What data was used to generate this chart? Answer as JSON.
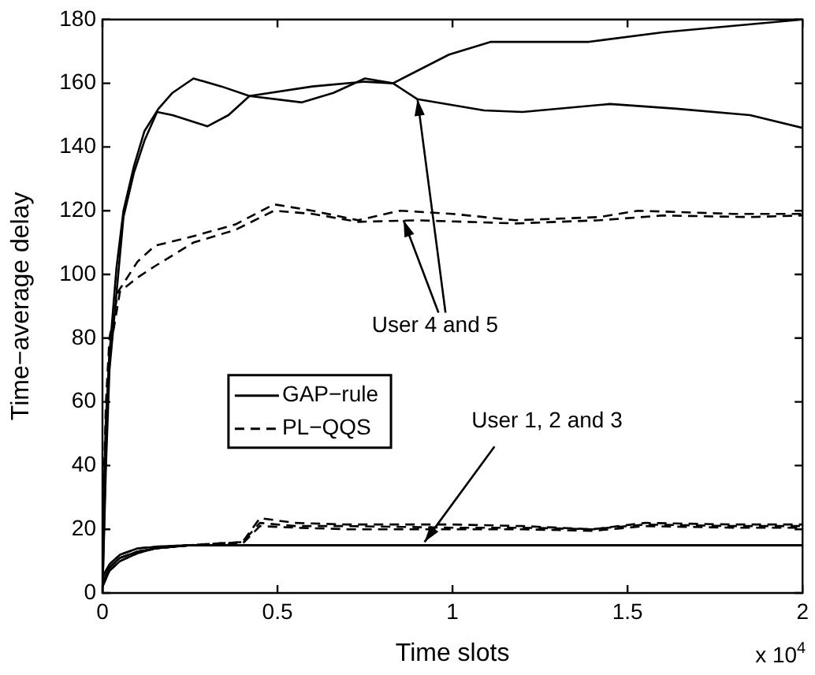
{
  "chart_data": {
    "type": "line",
    "xlabel": "Time slots",
    "ylabel": "Time−average delay",
    "xlim": [
      0,
      2
    ],
    "xticks": [
      0,
      0.5,
      1,
      1.5,
      2
    ],
    "ylim": [
      0,
      180
    ],
    "yticks": [
      0,
      20,
      40,
      60,
      80,
      100,
      120,
      140,
      160,
      180
    ],
    "grid": false,
    "legend": "center left",
    "marker": "none",
    "annotations": [
      {
        "text": "User 4 and 5",
        "x": 0.9,
        "y": 155
      },
      {
        "text": "User 1, 2 and 3",
        "x": 0.92,
        "y": 16
      },
      "x 10$^{4}$"
    ],
    "series": [
      {
        "name": "GAP−rule",
        "color": "#000000",
        "line_style": "solid",
        "x": [
          0,
          0.01,
          0.02,
          0.045,
          0.06,
          0.09,
          0.12,
          0.156,
          0.2,
          0.3,
          0.36,
          0.42,
          0.6,
          0.75,
          0.83,
          0.99,
          1.11,
          1.39,
          1.6,
          2
        ],
        "values": [
          0,
          40,
          70,
          100,
          118,
          132,
          142,
          151,
          150,
          146.5,
          150,
          156,
          159,
          160.5,
          160,
          169,
          173,
          173,
          176,
          180
        ]
      },
      {
        "color": "#000000",
        "line_style": "solid",
        "x": [
          0,
          0.01,
          0.02,
          0.04,
          0.06,
          0.09,
          0.12,
          0.16,
          0.2,
          0.26,
          0.34,
          0.42,
          0.57,
          0.66,
          0.75,
          0.83,
          0.9,
          1.09,
          1.2,
          1.45,
          1.64,
          1.85,
          2
        ],
        "values": [
          0,
          45,
          75,
          102,
          120,
          134,
          145,
          152,
          157,
          161.5,
          159,
          156,
          154,
          157,
          161.5,
          160,
          155,
          151.5,
          151,
          153.5,
          152,
          150,
          146
        ]
      },
      {
        "name": "PL−QQS",
        "color": "#000000",
        "line_style": "dashed",
        "x": [
          0,
          0.01,
          0.02,
          0.045,
          0.1,
          0.15,
          0.26,
          0.38,
          0.49,
          0.6,
          0.73,
          0.85,
          1.0,
          1.18,
          1.42,
          1.53,
          1.8,
          2
        ],
        "values": [
          20,
          60,
          80,
          94.6,
          104,
          109,
          112,
          115.7,
          122,
          120,
          117,
          120,
          119,
          117,
          118,
          120,
          119,
          119
        ]
      },
      {
        "color": "#000000",
        "line_style": "dashed",
        "x": [
          0,
          0.01,
          0.02,
          0.05,
          0.1,
          0.15,
          0.26,
          0.38,
          0.49,
          0.6,
          0.73,
          0.9,
          1.18,
          1.42,
          1.6,
          1.85,
          2
        ],
        "values": [
          18,
          55,
          75,
          94.6,
          99,
          102.6,
          110,
          114,
          120,
          119,
          116.5,
          117,
          116,
          117,
          118.5,
          118,
          118.5
        ]
      },
      {
        "color": "#000000",
        "line_style": "solid",
        "x": [
          0,
          0.02,
          0.05,
          0.1,
          0.15,
          0.25,
          0.4,
          2
        ],
        "values": [
          3,
          8,
          11,
          13,
          14,
          15,
          15,
          15
        ]
      },
      {
        "color": "#000000",
        "line_style": "solid",
        "x": [
          0,
          0.02,
          0.05,
          0.1,
          0.15,
          0.25,
          0.4,
          2
        ],
        "values": [
          5,
          9,
          12,
          14,
          14.5,
          15,
          15,
          15
        ]
      },
      {
        "color": "#000000",
        "line_style": "solid",
        "x": [
          0,
          0.02,
          0.05,
          0.1,
          0.15,
          0.25,
          0.4,
          2
        ],
        "values": [
          2,
          7,
          10,
          12.5,
          14,
          15,
          15,
          15
        ]
      },
      {
        "color": "#000000",
        "line_style": "dashed",
        "x": [
          0,
          0.02,
          0.05,
          0.1,
          0.15,
          0.25,
          0.4,
          0.45,
          0.55,
          0.7,
          1.0,
          1.2,
          1.4,
          1.55,
          1.8,
          2
        ],
        "values": [
          3,
          8,
          11,
          13,
          14,
          15,
          16,
          23.5,
          22,
          21.5,
          21.5,
          21,
          20,
          22,
          21.5,
          21.5
        ]
      },
      {
        "color": "#000000",
        "line_style": "dashed",
        "x": [
          0,
          0.02,
          0.05,
          0.1,
          0.15,
          0.25,
          0.4,
          0.45,
          0.55,
          0.7,
          1.0,
          1.2,
          1.4,
          1.55,
          1.8,
          2
        ],
        "values": [
          5,
          9,
          12,
          14,
          14.5,
          15,
          16,
          22,
          21,
          21,
          20.5,
          20.5,
          20,
          21.5,
          21,
          21
        ]
      },
      {
        "color": "#000000",
        "line_style": "dashed",
        "x": [
          0,
          0.02,
          0.05,
          0.1,
          0.15,
          0.25,
          0.4,
          0.45,
          0.55,
          0.7,
          1.0,
          1.2,
          1.4,
          1.55,
          1.8,
          2
        ],
        "values": [
          2,
          7,
          10,
          12.5,
          14,
          15,
          15.5,
          21,
          20.5,
          20,
          20,
          20,
          19.5,
          21,
          20.5,
          20.5
        ]
      }
    ]
  }
}
